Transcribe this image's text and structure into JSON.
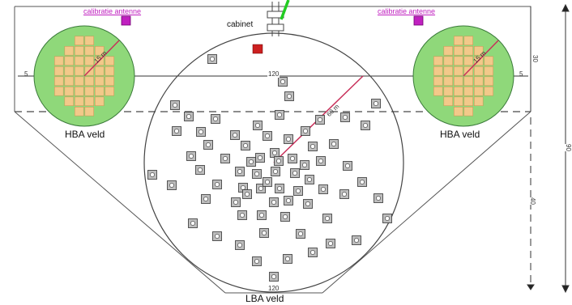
{
  "labels": {
    "cal_left": "calibratie antenne",
    "cal_right": "calibratie antenne",
    "cabinet": "cabinet",
    "hba_left": "HBA veld",
    "hba_right": "HBA veld",
    "lba": "LBA veld",
    "dim_left_edge": "5",
    "dim_right_edge": "5",
    "dim_center": "120",
    "dim_hba_radius": "15 m",
    "dim_lba_radius": "60 m",
    "dim_bottom": "120",
    "dim_right_upper": "30",
    "dim_right_lower": "40",
    "dim_right_total": "90"
  },
  "colors": {
    "calibration": "#c020c0",
    "cabinet": "#cc2020",
    "hba_tile": "#f2c98a",
    "hba_ring": "#8fd87a",
    "radius_line": "#c8305a",
    "pointer": "#22cc22"
  }
}
